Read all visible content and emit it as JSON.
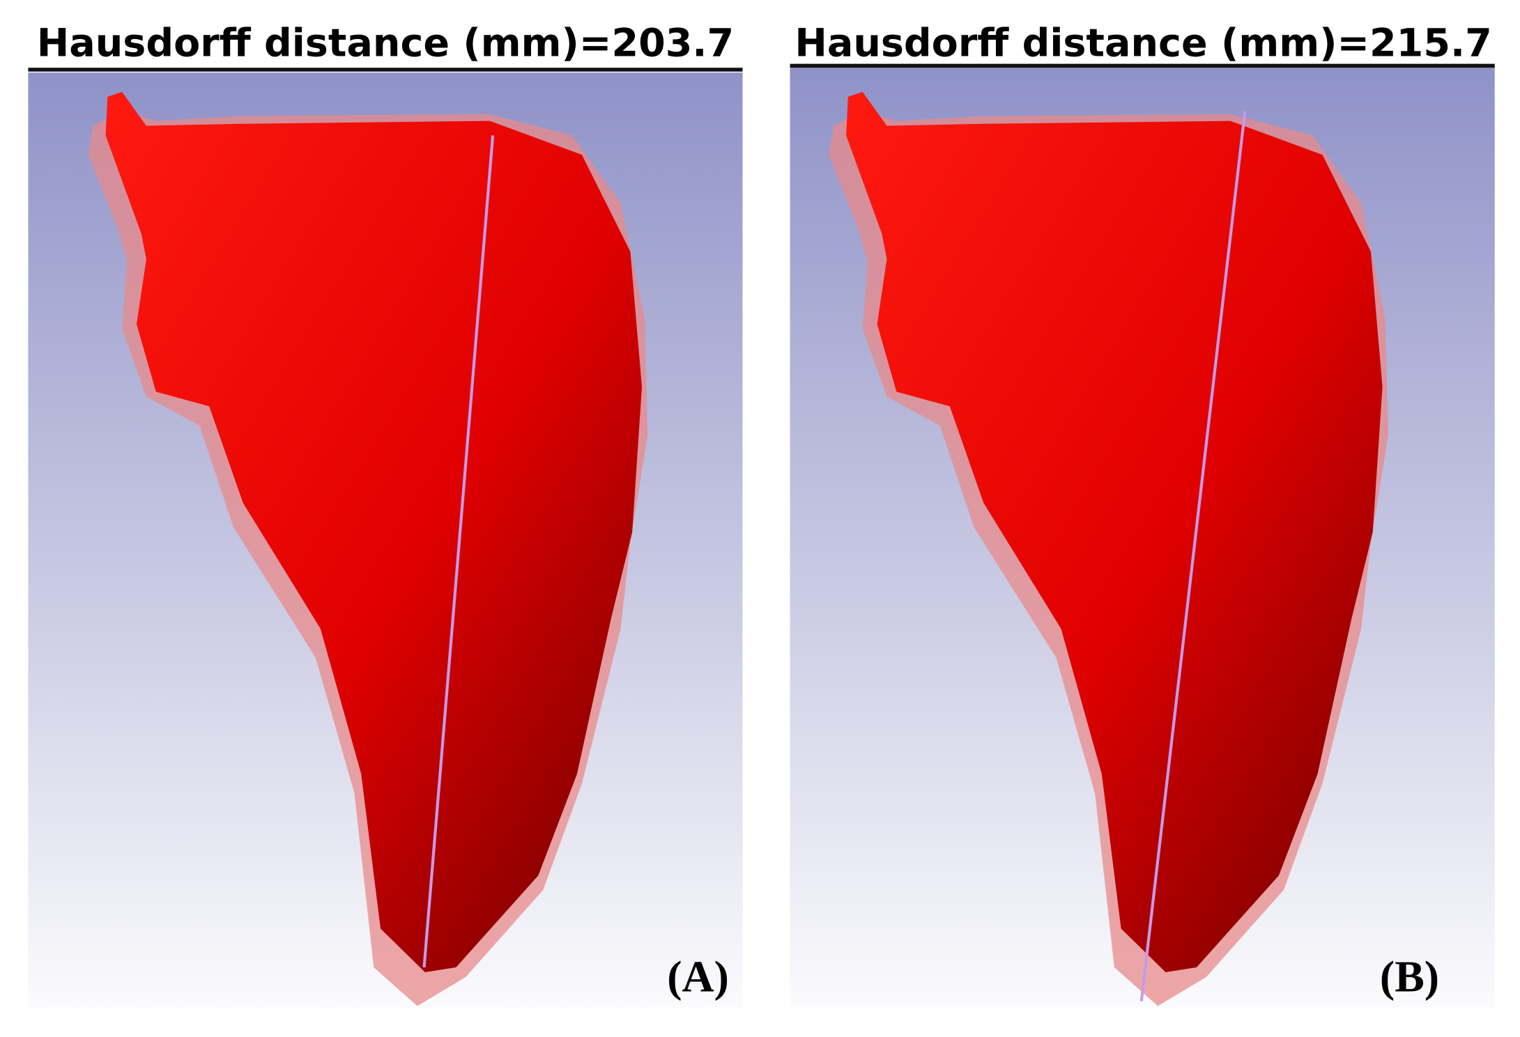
{
  "panels": [
    {
      "title": "Hausdorff distance (mm)=203.7",
      "label": "(A)"
    },
    {
      "title": "Hausdorff distance (mm)=215.7",
      "label": "(B)"
    }
  ]
}
